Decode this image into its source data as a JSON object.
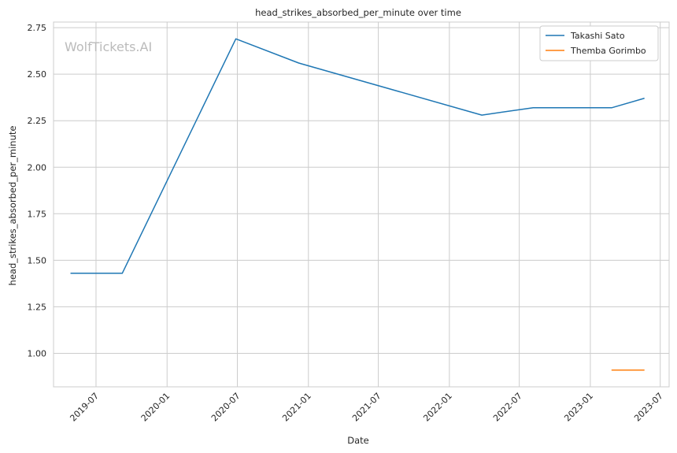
{
  "chart_data": {
    "type": "line",
    "title": "head_strikes_absorbed_per_minute over time",
    "xlabel": "Date",
    "ylabel": "head_strikes_absorbed_per_minute",
    "watermark": "WolfTickets.AI",
    "x_ticks": [
      "2019-07",
      "2020-01",
      "2020-07",
      "2021-01",
      "2021-07",
      "2022-01",
      "2022-07",
      "2023-01",
      "2023-07"
    ],
    "y_ticks": [
      "1.00",
      "1.25",
      "1.50",
      "1.75",
      "2.00",
      "2.25",
      "2.50",
      "2.75"
    ],
    "xlim": [
      "2019-03-13",
      "2023-07-24"
    ],
    "ylim": [
      0.82,
      2.78
    ],
    "grid": true,
    "legend_position": "top-right",
    "series": [
      {
        "name": "Takashi Sato",
        "color": "#1f77b4",
        "points": [
          {
            "x": "2019-04-27",
            "y": 1.43
          },
          {
            "x": "2019-09-07",
            "y": 1.43
          },
          {
            "x": "2020-06-27",
            "y": 2.69
          },
          {
            "x": "2020-12-07",
            "y": 2.56
          },
          {
            "x": "2022-03-26",
            "y": 2.28
          },
          {
            "x": "2022-08-06",
            "y": 2.32
          },
          {
            "x": "2023-02-26",
            "y": 2.32
          },
          {
            "x": "2023-05-20",
            "y": 2.37
          }
        ]
      },
      {
        "name": "Themba Gorimbo",
        "color": "#ff7f0e",
        "points": [
          {
            "x": "2023-02-26",
            "y": 0.91
          },
          {
            "x": "2023-05-20",
            "y": 0.91
          }
        ]
      }
    ]
  }
}
